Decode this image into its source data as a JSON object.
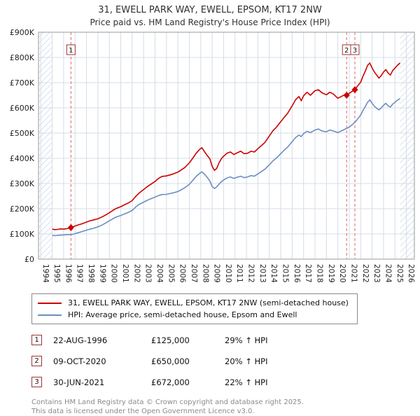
{
  "header": {
    "title": "31, EWELL PARK WAY, EWELL, EPSOM, KT17 2NW",
    "subtitle": "Price paid vs. HM Land Registry's House Price Index (HPI)"
  },
  "chart_data": {
    "type": "line",
    "xlim": [
      1993.8,
      2026.7
    ],
    "ylim": [
      0,
      900
    ],
    "x_ticks": [
      1994,
      1995,
      1996,
      1997,
      1998,
      1999,
      2000,
      2001,
      2002,
      2003,
      2004,
      2005,
      2006,
      2007,
      2008,
      2009,
      2010,
      2011,
      2012,
      2013,
      2014,
      2015,
      2016,
      2017,
      2018,
      2019,
      2020,
      2021,
      2022,
      2023,
      2024,
      2025,
      2026
    ],
    "y_ticks": [
      "£0",
      "£100K",
      "£200K",
      "£300K",
      "£400K",
      "£500K",
      "£600K",
      "£700K",
      "£800K",
      "£900K"
    ],
    "y_unit": "GBP thousands",
    "data_range": [
      1995.0,
      2025.45
    ],
    "colors": {
      "grid": "#d4dce8",
      "hatch": "#c9d7ea",
      "border": "#9a9a9a",
      "dashed": "#e06666",
      "box_border": "#a03333"
    },
    "series": [
      {
        "name": "31, EWELL PARK WAY, EWELL, EPSOM, KT17 2NW (semi-detached house)",
        "color": "#cc0000",
        "points": [
          [
            1995.0,
            119
          ],
          [
            1995.25,
            117
          ],
          [
            1995.5,
            118
          ],
          [
            1995.75,
            120
          ],
          [
            1996.0,
            119
          ],
          [
            1996.3,
            121
          ],
          [
            1996.64,
            125
          ],
          [
            1997.0,
            131
          ],
          [
            1997.3,
            136
          ],
          [
            1997.6,
            140
          ],
          [
            1998.0,
            147
          ],
          [
            1998.3,
            152
          ],
          [
            1998.6,
            155
          ],
          [
            1999.0,
            160
          ],
          [
            1999.3,
            166
          ],
          [
            1999.6,
            173
          ],
          [
            2000.0,
            184
          ],
          [
            2000.3,
            193
          ],
          [
            2000.6,
            201
          ],
          [
            2001.0,
            208
          ],
          [
            2001.3,
            215
          ],
          [
            2001.6,
            221
          ],
          [
            2002.0,
            232
          ],
          [
            2002.3,
            248
          ],
          [
            2002.6,
            262
          ],
          [
            2003.0,
            276
          ],
          [
            2003.3,
            287
          ],
          [
            2003.6,
            296
          ],
          [
            2004.0,
            308
          ],
          [
            2004.3,
            320
          ],
          [
            2004.6,
            328
          ],
          [
            2005.0,
            330
          ],
          [
            2005.3,
            334
          ],
          [
            2005.6,
            338
          ],
          [
            2006.0,
            345
          ],
          [
            2006.3,
            354
          ],
          [
            2006.6,
            363
          ],
          [
            2007.0,
            382
          ],
          [
            2007.3,
            400
          ],
          [
            2007.6,
            420
          ],
          [
            2007.9,
            435
          ],
          [
            2008.1,
            442
          ],
          [
            2008.3,
            428
          ],
          [
            2008.5,
            415
          ],
          [
            2008.8,
            398
          ],
          [
            2009.0,
            368
          ],
          [
            2009.2,
            352
          ],
          [
            2009.4,
            360
          ],
          [
            2009.6,
            382
          ],
          [
            2009.8,
            398
          ],
          [
            2010.0,
            408
          ],
          [
            2010.3,
            420
          ],
          [
            2010.6,
            425
          ],
          [
            2010.9,
            415
          ],
          [
            2011.2,
            422
          ],
          [
            2011.5,
            428
          ],
          [
            2011.8,
            418
          ],
          [
            2012.1,
            420
          ],
          [
            2012.4,
            428
          ],
          [
            2012.7,
            425
          ],
          [
            2013.0,
            438
          ],
          [
            2013.3,
            450
          ],
          [
            2013.6,
            462
          ],
          [
            2014.0,
            488
          ],
          [
            2014.3,
            508
          ],
          [
            2014.6,
            522
          ],
          [
            2015.0,
            545
          ],
          [
            2015.3,
            562
          ],
          [
            2015.6,
            578
          ],
          [
            2016.0,
            608
          ],
          [
            2016.3,
            632
          ],
          [
            2016.6,
            645
          ],
          [
            2016.8,
            628
          ],
          [
            2017.0,
            648
          ],
          [
            2017.3,
            662
          ],
          [
            2017.6,
            650
          ],
          [
            2018.0,
            668
          ],
          [
            2018.3,
            672
          ],
          [
            2018.6,
            660
          ],
          [
            2019.0,
            652
          ],
          [
            2019.3,
            662
          ],
          [
            2019.6,
            655
          ],
          [
            2020.0,
            638
          ],
          [
            2020.3,
            645
          ],
          [
            2020.6,
            652
          ],
          [
            2020.77,
            650
          ],
          [
            2021.0,
            658
          ],
          [
            2021.25,
            665
          ],
          [
            2021.49,
            672
          ],
          [
            2021.7,
            685
          ],
          [
            2022.0,
            702
          ],
          [
            2022.2,
            726
          ],
          [
            2022.4,
            745
          ],
          [
            2022.6,
            768
          ],
          [
            2022.8,
            778
          ],
          [
            2023.0,
            758
          ],
          [
            2023.2,
            742
          ],
          [
            2023.4,
            730
          ],
          [
            2023.6,
            718
          ],
          [
            2023.8,
            728
          ],
          [
            2024.0,
            742
          ],
          [
            2024.2,
            752
          ],
          [
            2024.4,
            738
          ],
          [
            2024.6,
            730
          ],
          [
            2024.8,
            748
          ],
          [
            2025.0,
            758
          ],
          [
            2025.2,
            768
          ],
          [
            2025.45,
            778
          ]
        ]
      },
      {
        "name": "HPI: Average price, semi-detached house, Epsom and Ewell",
        "color": "#6c8ebf",
        "points": [
          [
            1995.0,
            94
          ],
          [
            1995.3,
            93
          ],
          [
            1995.6,
            95
          ],
          [
            1996.0,
            96
          ],
          [
            1996.3,
            97
          ],
          [
            1996.64,
            97
          ],
          [
            1997.0,
            101
          ],
          [
            1997.3,
            105
          ],
          [
            1997.6,
            109
          ],
          [
            1998.0,
            115
          ],
          [
            1998.3,
            119
          ],
          [
            1998.6,
            122
          ],
          [
            1999.0,
            128
          ],
          [
            1999.3,
            134
          ],
          [
            1999.6,
            141
          ],
          [
            2000.0,
            152
          ],
          [
            2000.3,
            160
          ],
          [
            2000.6,
            167
          ],
          [
            2001.0,
            173
          ],
          [
            2001.3,
            179
          ],
          [
            2001.6,
            184
          ],
          [
            2002.0,
            193
          ],
          [
            2002.3,
            206
          ],
          [
            2002.6,
            217
          ],
          [
            2003.0,
            226
          ],
          [
            2003.3,
            233
          ],
          [
            2003.6,
            239
          ],
          [
            2004.0,
            246
          ],
          [
            2004.3,
            252
          ],
          [
            2004.6,
            256
          ],
          [
            2005.0,
            257
          ],
          [
            2005.3,
            260
          ],
          [
            2005.6,
            263
          ],
          [
            2006.0,
            268
          ],
          [
            2006.3,
            275
          ],
          [
            2006.6,
            283
          ],
          [
            2007.0,
            297
          ],
          [
            2007.3,
            312
          ],
          [
            2007.6,
            328
          ],
          [
            2007.9,
            340
          ],
          [
            2008.1,
            346
          ],
          [
            2008.3,
            338
          ],
          [
            2008.5,
            328
          ],
          [
            2008.8,
            310
          ],
          [
            2009.0,
            288
          ],
          [
            2009.2,
            280
          ],
          [
            2009.4,
            287
          ],
          [
            2009.6,
            297
          ],
          [
            2009.8,
            307
          ],
          [
            2010.0,
            314
          ],
          [
            2010.3,
            322
          ],
          [
            2010.6,
            326
          ],
          [
            2010.9,
            320
          ],
          [
            2011.2,
            325
          ],
          [
            2011.5,
            329
          ],
          [
            2011.8,
            323
          ],
          [
            2012.1,
            326
          ],
          [
            2012.4,
            331
          ],
          [
            2012.7,
            329
          ],
          [
            2013.0,
            338
          ],
          [
            2013.3,
            347
          ],
          [
            2013.6,
            356
          ],
          [
            2014.0,
            374
          ],
          [
            2014.3,
            389
          ],
          [
            2014.6,
            400
          ],
          [
            2015.0,
            418
          ],
          [
            2015.3,
            432
          ],
          [
            2015.6,
            444
          ],
          [
            2016.0,
            466
          ],
          [
            2016.3,
            482
          ],
          [
            2016.6,
            492
          ],
          [
            2016.8,
            486
          ],
          [
            2017.0,
            498
          ],
          [
            2017.3,
            507
          ],
          [
            2017.6,
            502
          ],
          [
            2018.0,
            512
          ],
          [
            2018.3,
            516
          ],
          [
            2018.6,
            508
          ],
          [
            2019.0,
            505
          ],
          [
            2019.3,
            512
          ],
          [
            2019.6,
            508
          ],
          [
            2020.0,
            502
          ],
          [
            2020.3,
            508
          ],
          [
            2020.6,
            515
          ],
          [
            2021.0,
            524
          ],
          [
            2021.3,
            535
          ],
          [
            2021.6,
            548
          ],
          [
            2022.0,
            572
          ],
          [
            2022.2,
            590
          ],
          [
            2022.4,
            605
          ],
          [
            2022.6,
            622
          ],
          [
            2022.8,
            632
          ],
          [
            2023.0,
            618
          ],
          [
            2023.2,
            606
          ],
          [
            2023.4,
            598
          ],
          [
            2023.6,
            592
          ],
          [
            2023.8,
            600
          ],
          [
            2024.0,
            610
          ],
          [
            2024.2,
            618
          ],
          [
            2024.4,
            608
          ],
          [
            2024.6,
            603
          ],
          [
            2024.8,
            615
          ],
          [
            2025.0,
            622
          ],
          [
            2025.2,
            630
          ],
          [
            2025.45,
            637
          ]
        ]
      }
    ],
    "sale_markers": [
      {
        "label": "1",
        "x": 1996.64,
        "y": 125
      },
      {
        "label": "2",
        "x": 2020.77,
        "y": 650
      },
      {
        "label": "3",
        "x": 2021.49,
        "y": 672
      }
    ]
  },
  "transactions": [
    {
      "num": "1",
      "date": "22-AUG-1996",
      "price": "£125,000",
      "hpi": "29% ↑ HPI"
    },
    {
      "num": "2",
      "date": "09-OCT-2020",
      "price": "£650,000",
      "hpi": "20% ↑ HPI"
    },
    {
      "num": "3",
      "date": "30-JUN-2021",
      "price": "£672,000",
      "hpi": "22% ↑ HPI"
    }
  ],
  "footer": {
    "line1": "Contains HM Land Registry data © Crown copyright and database right 2025.",
    "line2": "This data is licensed under the Open Government Licence v3.0."
  }
}
